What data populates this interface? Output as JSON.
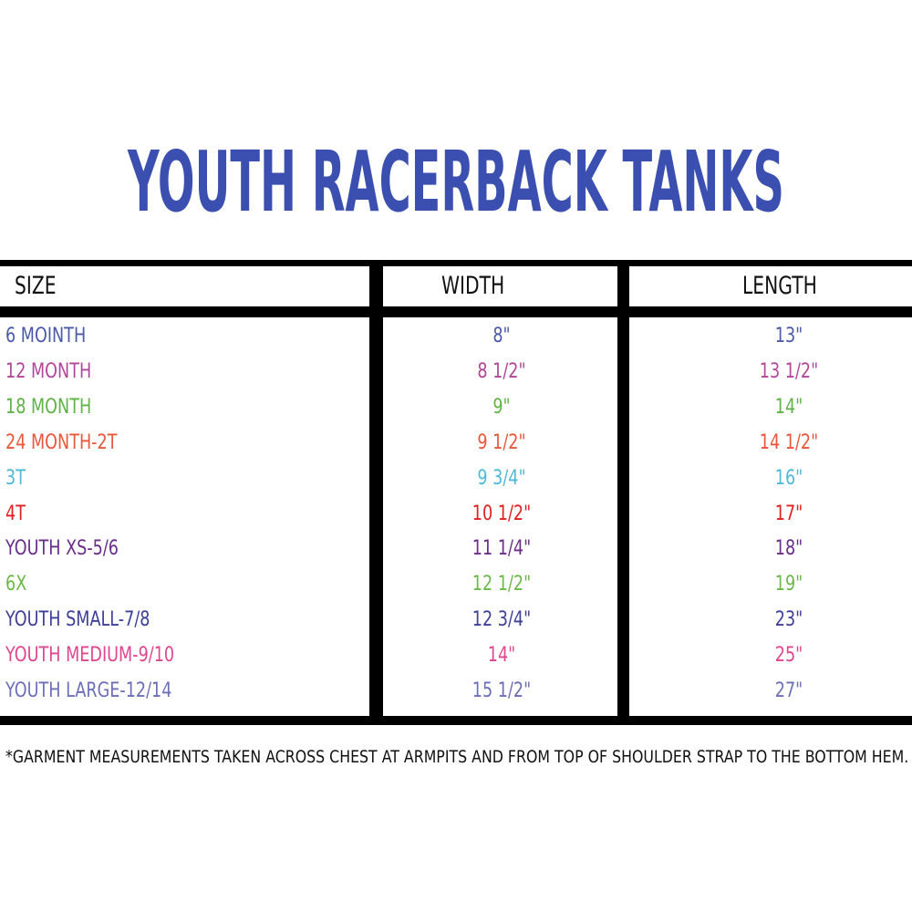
{
  "title": "YOUTH RACERBACK TANKS",
  "headers": [
    "SIZE",
    "WIDTH",
    "LENGTH"
  ],
  "rows": [
    {
      "size": "6  MOINTH",
      "width": "8\"",
      "length": "13\"",
      "color": "#4a5aa8"
    },
    {
      "size": "12 MONTH",
      "width": "8 1/2\"",
      "length": "13 1/2\"",
      "color": "#b0479a"
    },
    {
      "size": "18 MONTH",
      "width": "9\"",
      "length": "14\"",
      "color": "#5fb347"
    },
    {
      "size": "24 MONTH-2T",
      "width": "9 1/2\"",
      "length": "14 1/2\"",
      "color": "#e8573a"
    },
    {
      "size": "3T",
      "width": "9 3/4\"",
      "length": "16\"",
      "color": "#4fb8d8"
    },
    {
      "size": "4T",
      "width": "10 1/2\"",
      "length": "17\"",
      "color": "#e02020"
    },
    {
      "size": "YOUTH XS-5/6",
      "width": "11 1/4\"",
      "length": "18\"",
      "color": "#6a2d8a"
    },
    {
      "size": "6X",
      "width": "12 1/2\"",
      "length": "19\"",
      "color": "#6db84a"
    },
    {
      "size": "YOUTH SMALL-7/8",
      "width": "12 3/4\"",
      "length": "23\"",
      "color": "#3e3f96"
    },
    {
      "size": "YOUTH MEDIUM-9/10",
      "width": "14\"",
      "length": "25\"",
      "color": "#e0468f"
    },
    {
      "size": "YOUTH LARGE-12/14",
      "width": "15 1/2\"",
      "length": "27\"",
      "color": "#6c6fb8"
    }
  ],
  "footnote": "*GARMENT MEASUREMENTS TAKEN ACROSS CHEST AT ARMPITS AND FROM TOP OF SHOULDER STRAP TO THE BOTTOM HEM."
}
